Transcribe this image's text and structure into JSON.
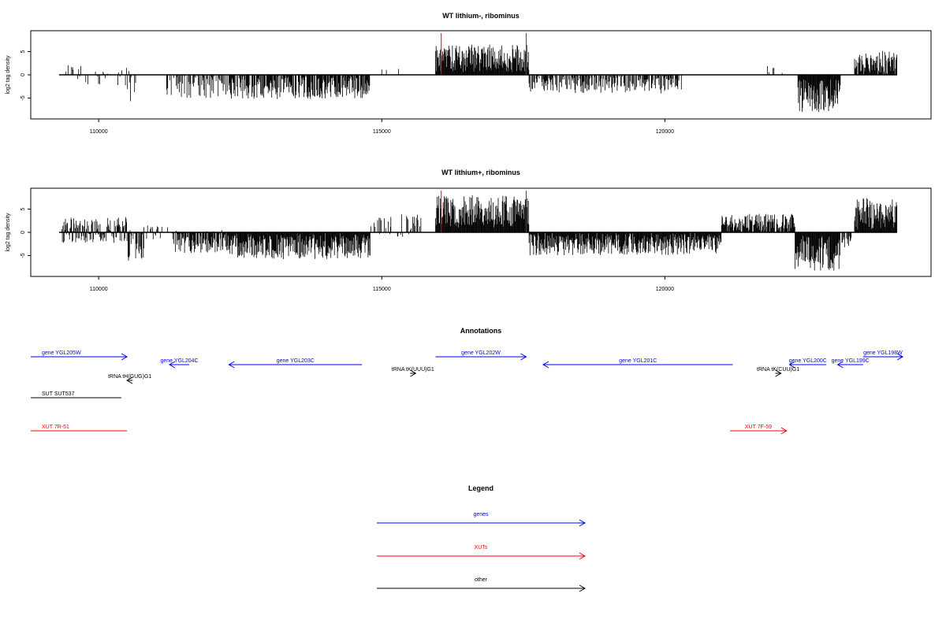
{
  "chart_data": [
    {
      "type": "bar",
      "title": "WT lithium-, ribominus",
      "ylabel": "log2 tag density",
      "xlabel": "",
      "xlim": [
        108800,
        124700
      ],
      "ylim": [
        -9.5,
        9.5
      ],
      "x_ticks": [
        110000,
        115000,
        120000
      ],
      "y_ticks": [
        -5,
        0,
        5
      ],
      "baseline_range": [
        109300,
        124100
      ],
      "highlight_lines": [
        116050,
        117550
      ],
      "highlight_color": "#ff0000",
      "profile_segments": [
        {
          "start": 109350,
          "end": 109700,
          "density": 0.2,
          "mean": 0.5,
          "amp": 2.0
        },
        {
          "start": 109700,
          "end": 110400,
          "density": 0.15,
          "mean": -0.8,
          "amp": 1.5
        },
        {
          "start": 110400,
          "end": 110700,
          "density": 0.2,
          "mean": -2.0,
          "amp": 4.0
        },
        {
          "start": 111200,
          "end": 112300,
          "density": 0.55,
          "mean": -2.5,
          "amp": 2.5
        },
        {
          "start": 112300,
          "end": 114800,
          "density": 0.8,
          "mean": -2.8,
          "amp": 2.5
        },
        {
          "start": 115000,
          "end": 115300,
          "density": 0.1,
          "mean": 1.5,
          "amp": 1.5
        },
        {
          "start": 115950,
          "end": 117600,
          "density": 1.0,
          "mean": 3.6,
          "amp": 3.0
        },
        {
          "start": 117600,
          "end": 120300,
          "density": 0.65,
          "mean": -2.0,
          "amp": 2.0
        },
        {
          "start": 121800,
          "end": 122100,
          "density": 0.2,
          "mean": 1.0,
          "amp": 1.2
        },
        {
          "start": 122350,
          "end": 123100,
          "density": 1.0,
          "mean": -4.5,
          "amp": 3.5
        },
        {
          "start": 123350,
          "end": 124100,
          "density": 0.9,
          "mean": 2.8,
          "amp": 2.5
        }
      ]
    },
    {
      "type": "bar",
      "title": "WT lithium+, ribominus",
      "ylabel": "log2 tag density",
      "xlabel": "",
      "xlim": [
        108800,
        124700
      ],
      "ylim": [
        -9.5,
        9.5
      ],
      "x_ticks": [
        110000,
        115000,
        120000
      ],
      "y_ticks": [
        -5,
        0,
        5
      ],
      "baseline_range": [
        109300,
        124100
      ],
      "highlight_lines": [
        116050,
        117550
      ],
      "highlight_color": "#ff0000",
      "profile_segments": [
        {
          "start": 109350,
          "end": 110500,
          "density": 0.9,
          "mean": 0.5,
          "amp": 2.8
        },
        {
          "start": 110500,
          "end": 110800,
          "density": 0.8,
          "mean": -3.0,
          "amp": 3.5
        },
        {
          "start": 110800,
          "end": 111300,
          "density": 0.3,
          "mean": 0.0,
          "amp": 1.5
        },
        {
          "start": 111300,
          "end": 112300,
          "density": 0.9,
          "mean": -2.0,
          "amp": 2.5
        },
        {
          "start": 112300,
          "end": 114800,
          "density": 1.0,
          "mean": -3.0,
          "amp": 2.8
        },
        {
          "start": 114800,
          "end": 115700,
          "density": 0.35,
          "mean": 1.5,
          "amp": 2.5
        },
        {
          "start": 115950,
          "end": 117600,
          "density": 1.0,
          "mean": 4.5,
          "amp": 3.5
        },
        {
          "start": 117600,
          "end": 121000,
          "density": 1.0,
          "mean": -2.5,
          "amp": 2.5
        },
        {
          "start": 121000,
          "end": 122300,
          "density": 0.9,
          "mean": 2.0,
          "amp": 2.0
        },
        {
          "start": 122300,
          "end": 123100,
          "density": 1.0,
          "mean": -4.5,
          "amp": 3.8
        },
        {
          "start": 123100,
          "end": 123300,
          "density": 0.5,
          "mean": -2.0,
          "amp": 1.5
        },
        {
          "start": 123350,
          "end": 124100,
          "density": 1.0,
          "mean": 4.0,
          "amp": 3.5
        }
      ]
    },
    {
      "type": "annotation_track",
      "title": "Annotations",
      "xlim": [
        108800,
        124700
      ],
      "features": [
        {
          "label": "gene YGL205W",
          "start": 108800,
          "end": 110500,
          "strand": "+",
          "row": 0,
          "class": "gene"
        },
        {
          "label": "gene YGL204C",
          "start": 111250,
          "end": 111600,
          "strand": "-",
          "row": 1,
          "class": "gene"
        },
        {
          "label": "gene YGL203C",
          "start": 112300,
          "end": 114650,
          "strand": "-",
          "row": 1,
          "class": "gene"
        },
        {
          "label": "gene YGL202W",
          "start": 115950,
          "end": 117550,
          "strand": "+",
          "row": 0,
          "class": "gene"
        },
        {
          "label": "gene YGL201C",
          "start": 117850,
          "end": 121200,
          "strand": "-",
          "row": 1,
          "class": "gene"
        },
        {
          "label": "gene YGL200C",
          "start": 122200,
          "end": 122850,
          "strand": "-",
          "row": 1,
          "class": "gene"
        },
        {
          "label": "gene YGL199C",
          "start": 123050,
          "end": 123500,
          "strand": "-",
          "row": 1,
          "class": "gene"
        },
        {
          "label": "gene YGL198W",
          "start": 123500,
          "end": 124200,
          "strand": "+",
          "row": 0,
          "class": "gene"
        },
        {
          "label": "tRNA tH(GUG)G1",
          "start": 110500,
          "end": 110600,
          "strand": "-",
          "row": 3,
          "class": "other"
        },
        {
          "label": "tRNA tK(UUU)G1",
          "start": 115500,
          "end": 115600,
          "strand": "+",
          "row": 2,
          "class": "other"
        },
        {
          "label": "tRNA tK(CUU)G1",
          "start": 121950,
          "end": 122050,
          "strand": "+",
          "row": 2,
          "class": "other"
        },
        {
          "label": "SUT SUT537",
          "start": 108800,
          "end": 110400,
          "strand": ".",
          "row": 4,
          "class": "other"
        },
        {
          "label": "XUT 7R-51",
          "start": 108800,
          "end": 110500,
          "strand": ".",
          "row": 5,
          "class": "xut"
        },
        {
          "label": "XUT 7F-59",
          "start": 121150,
          "end": 122150,
          "strand": "+",
          "row": 5,
          "class": "xut"
        }
      ]
    },
    {
      "type": "legend",
      "title": "Legend",
      "entries": [
        {
          "label": "genes",
          "color": "#0000ff"
        },
        {
          "label": "XUTs",
          "color": "#ff0000"
        },
        {
          "label": "other",
          "color": "#000000"
        }
      ]
    }
  ],
  "colors": {
    "gene": "#0000ff",
    "xut": "#ff0000",
    "other": "#000000",
    "bars": "#000000"
  }
}
